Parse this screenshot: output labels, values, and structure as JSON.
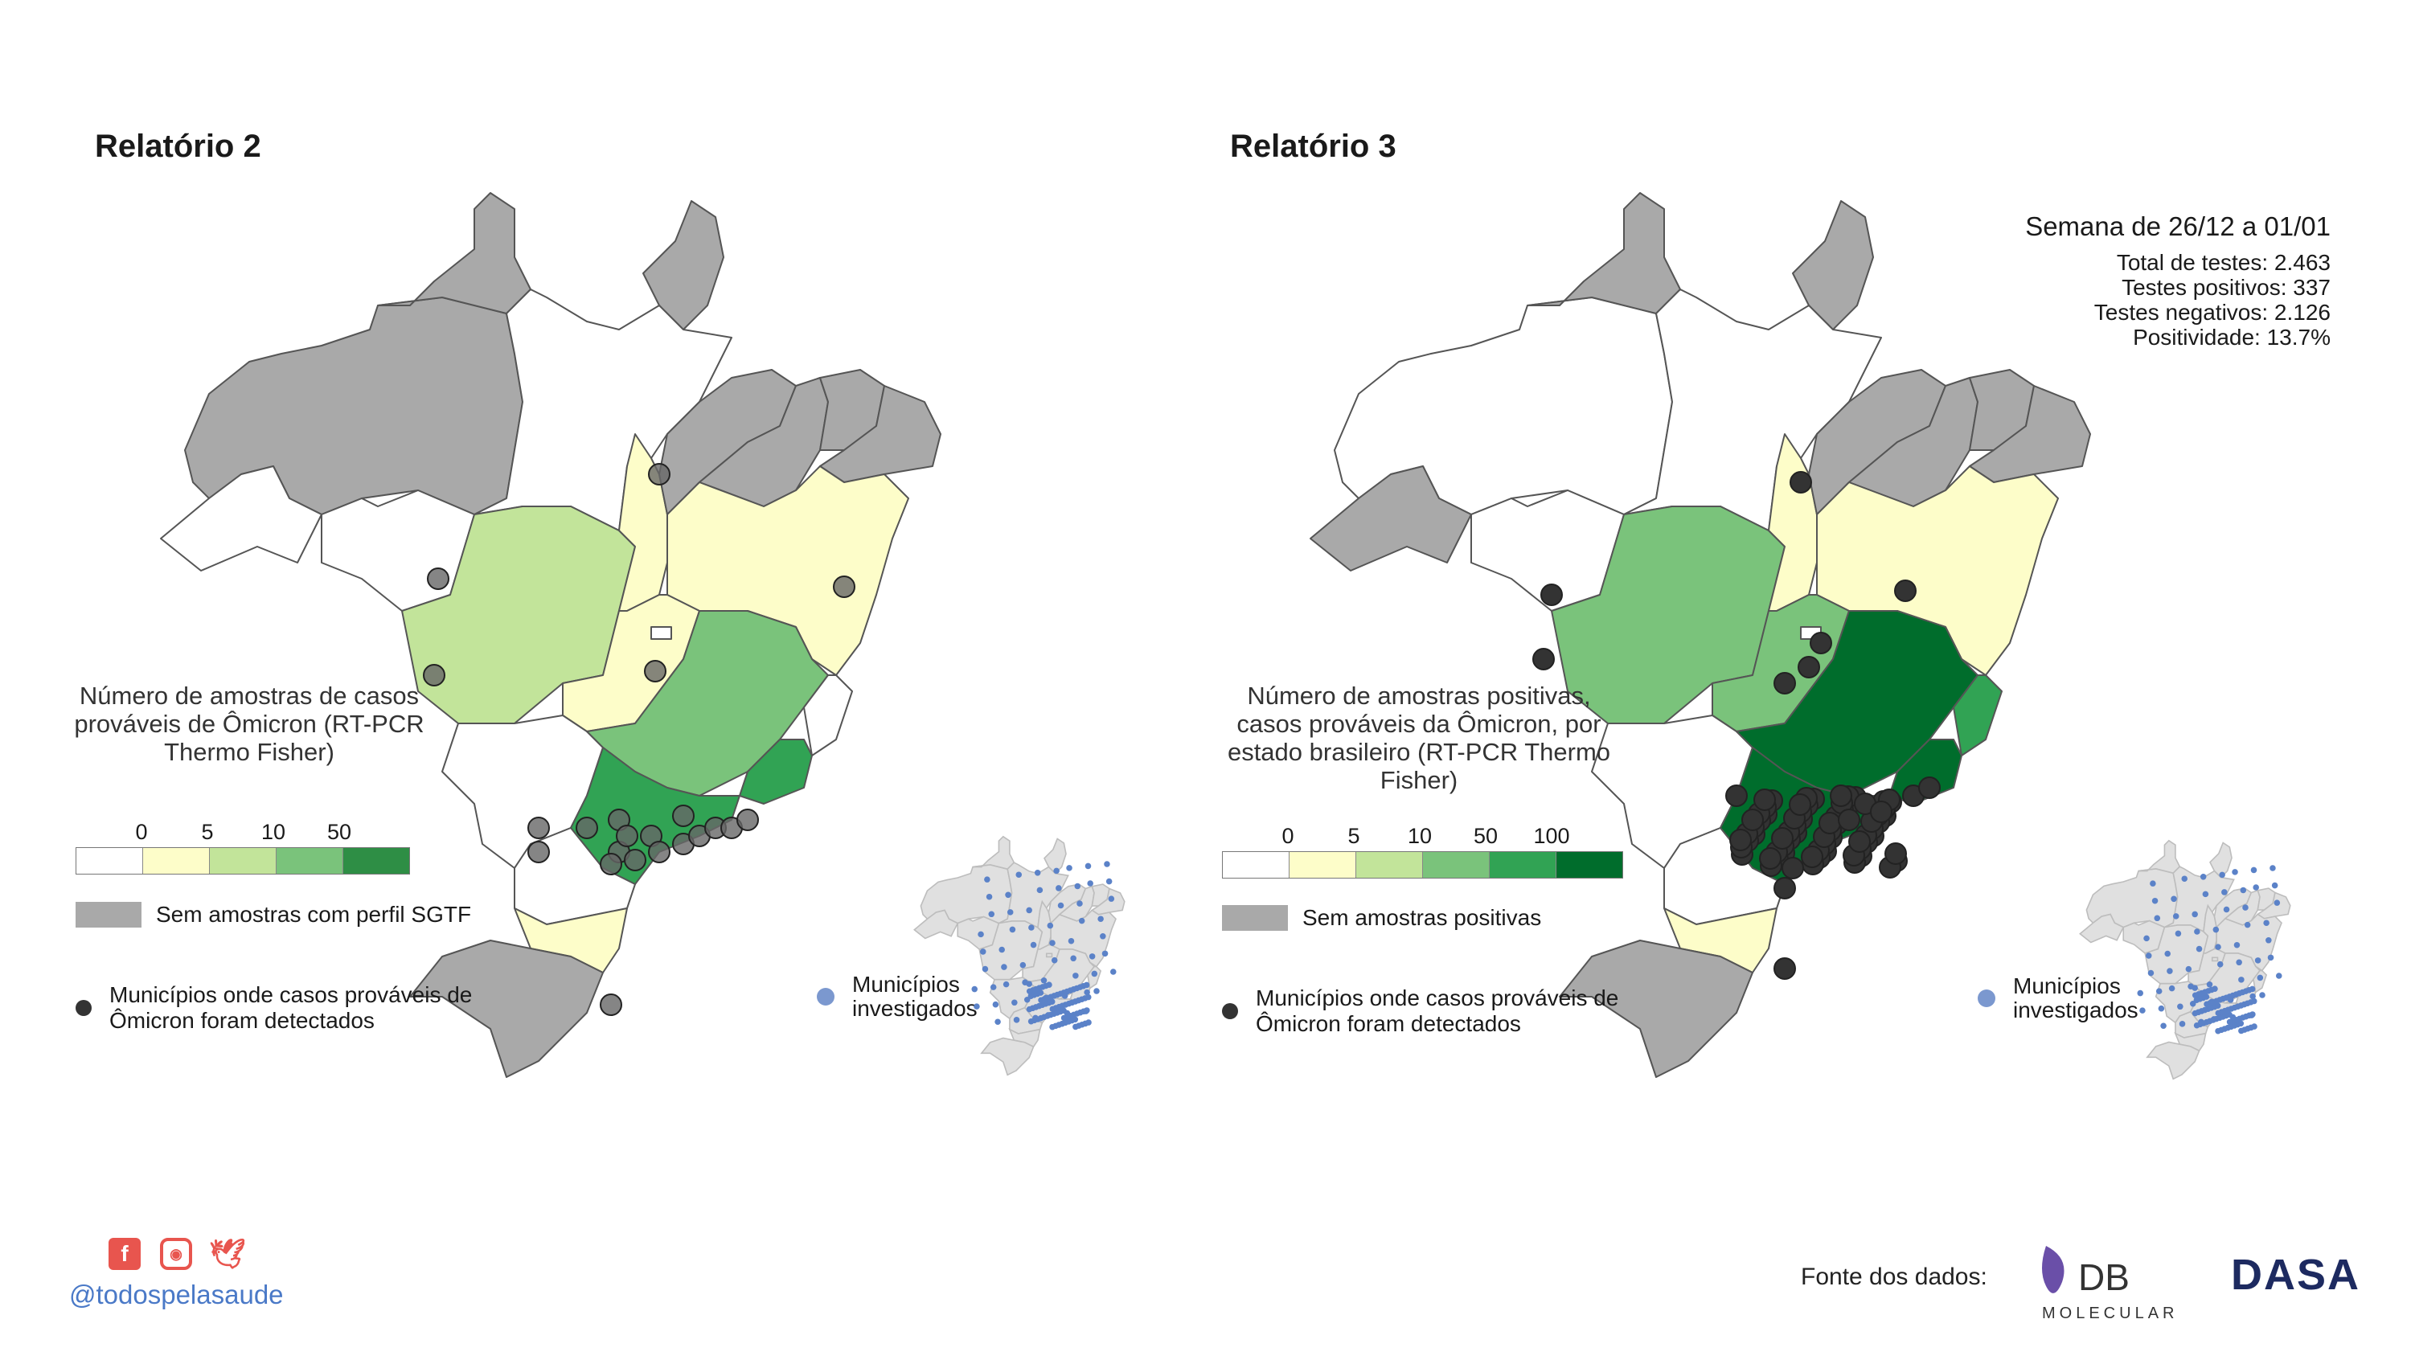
{
  "left_panel": {
    "title": "Relatório 2",
    "legend_title": "Número de amostras de casos prováveis de Ômicron (RT-PCR Thermo Fisher)",
    "scale_ticks": [
      "0",
      "5",
      "10",
      "50"
    ],
    "scale_colors": [
      "#ffffff",
      "#fdfdc9",
      "#c2e49a",
      "#7ac37b",
      "#2e8e45"
    ],
    "no_samples_label": "Sem amostras com perfil SGTF",
    "detected_label": "Municípios onde casos prováveis de Ômicron foram detectados",
    "investigated_label": "Municípios investigados"
  },
  "right_panel": {
    "title": "Relatório 3",
    "week": "Semana de 26/12 a 01/01",
    "stats": [
      "Total de testes: 2.463",
      "Testes positivos: 337",
      "Testes negativos: 2.126",
      "Positividade: 13.7%"
    ],
    "legend_title": "Número de amostras positivas, casos prováveis da Ômicron, por estado brasileiro (RT-PCR Thermo Fisher)",
    "scale_ticks": [
      "0",
      "5",
      "10",
      "50",
      "100"
    ],
    "scale_colors": [
      "#ffffff",
      "#fdfdc9",
      "#c2e49a",
      "#7ac37b",
      "#31a354",
      "#006d2c"
    ],
    "no_samples_label": "Sem amostras positivas",
    "detected_label": "Municípios onde casos prováveis de Ômicron foram detectados",
    "investigated_label": "Municípios investigados"
  },
  "map_colors": {
    "gray": "#a9a9a9",
    "white": "#ffffff",
    "yellow": "#fdfdc9",
    "light_green": "#c2e49a",
    "mid_green": "#7ac37b",
    "green": "#31a354",
    "dark_green": "#006d2c",
    "detected_dot": "#333333",
    "investigated_dot": "#5b82c8"
  },
  "footer": {
    "handle": "@todospelasaude",
    "social_icons": [
      "facebook-icon",
      "instagram-icon",
      "twitter-icon"
    ],
    "source_label": "Fonte dos dados:",
    "db_logo_text": "DB",
    "db_logo_sub": "MOLECULAR",
    "dasa_logo_text": "DASA"
  }
}
